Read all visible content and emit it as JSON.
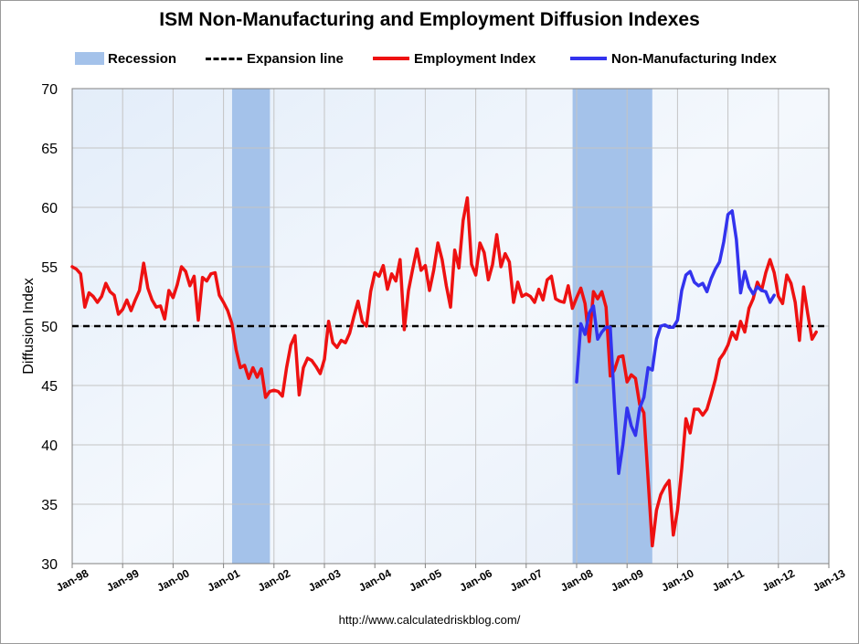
{
  "chart_data": {
    "type": "line",
    "title": "ISM Non-Manufacturing and Employment Diffusion Indexes",
    "xlabel": "",
    "ylabel": "Diffusion Index",
    "ylim": [
      30,
      70
    ],
    "yticks": [
      30,
      35,
      40,
      45,
      50,
      55,
      60,
      65,
      70
    ],
    "xlim": [
      1998.0,
      2013.0
    ],
    "xticks": [
      {
        "label": "Jan-98",
        "t": 1998
      },
      {
        "label": "Jan-99",
        "t": 1999
      },
      {
        "label": "Jan-00",
        "t": 2000
      },
      {
        "label": "Jan-01",
        "t": 2001
      },
      {
        "label": "Jan-02",
        "t": 2002
      },
      {
        "label": "Jan-03",
        "t": 2003
      },
      {
        "label": "Jan-04",
        "t": 2004
      },
      {
        "label": "Jan-05",
        "t": 2005
      },
      {
        "label": "Jan-06",
        "t": 2006
      },
      {
        "label": "Jan-07",
        "t": 2007
      },
      {
        "label": "Jan-08",
        "t": 2008
      },
      {
        "label": "Jan-09",
        "t": 2009
      },
      {
        "label": "Jan-10",
        "t": 2010
      },
      {
        "label": "Jan-11",
        "t": 2011
      },
      {
        "label": "Jan-12",
        "t": 2012
      },
      {
        "label": "Jan-13",
        "t": 2013
      }
    ],
    "grid": true,
    "legend_position": "top",
    "expansion_line": 50,
    "recessions": [
      {
        "start": 2001.17,
        "end": 2001.92
      },
      {
        "start": 2007.92,
        "end": 2009.5
      }
    ],
    "series": [
      {
        "name": "Employment Index",
        "color": "#ee1111",
        "start": 1998.0,
        "step": 0.08333,
        "values": [
          55.0,
          54.8,
          54.4,
          51.6,
          52.8,
          52.5,
          52.0,
          52.5,
          53.6,
          52.9,
          52.6,
          51.0,
          51.4,
          52.2,
          51.3,
          52.2,
          53.0,
          55.3,
          53.2,
          52.2,
          51.6,
          51.7,
          50.6,
          53.0,
          52.4,
          53.5,
          55.0,
          54.6,
          53.4,
          54.2,
          50.5,
          54.1,
          53.8,
          54.4,
          54.5,
          52.6,
          52.0,
          51.3,
          50.2,
          48.0,
          46.5,
          46.7,
          45.6,
          46.5,
          45.7,
          46.4,
          44.0,
          44.5,
          44.6,
          44.5,
          44.1,
          46.5,
          48.4,
          49.2,
          44.2,
          46.5,
          47.3,
          47.1,
          46.6,
          46.0,
          47.2,
          50.4,
          48.6,
          48.2,
          48.8,
          48.6,
          49.4,
          50.8,
          52.1,
          50.4,
          50.0,
          52.9,
          54.5,
          54.2,
          55.1,
          53.1,
          54.4,
          53.8,
          55.6,
          49.7,
          53.0,
          54.8,
          56.5,
          54.7,
          55.1,
          53.0,
          54.7,
          57.0,
          55.6,
          53.4,
          51.6,
          56.4,
          54.9,
          58.9,
          60.8,
          55.2,
          54.3,
          57.0,
          56.2,
          53.9,
          55.2,
          57.7,
          55.0,
          56.1,
          55.4,
          52.0,
          53.7,
          52.5,
          52.7,
          52.5,
          52.0,
          53.1,
          52.2,
          53.9,
          54.2,
          52.3,
          52.1,
          52.0,
          53.4,
          51.5,
          52.4,
          53.2,
          51.9,
          48.7,
          52.9,
          52.3,
          52.9,
          51.6,
          45.8,
          46.3,
          47.4,
          47.5,
          45.3,
          45.9,
          45.6,
          43.4,
          42.7,
          37.1,
          31.5,
          34.5,
          35.8,
          36.5,
          37.0,
          32.4,
          34.5,
          38.0,
          42.2,
          41.0,
          43.0,
          43.0,
          42.5,
          43.0,
          44.2,
          45.5,
          47.2,
          47.7,
          48.4,
          49.5,
          48.9,
          50.4,
          49.5,
          51.5,
          52.3,
          53.7,
          53.0,
          54.5,
          55.6,
          54.5,
          52.5,
          51.9,
          54.3,
          53.6,
          52.0,
          48.8,
          53.3,
          51.0,
          48.9,
          49.5
        ]
      },
      {
        "name": "Non-Manufacturing Index",
        "color": "#3333ee",
        "start": 2008.0,
        "step": 0.08333,
        "values": [
          45.3,
          50.2,
          49.3,
          51.1,
          51.7,
          48.9,
          49.5,
          49.9,
          49.9,
          43.5,
          37.6,
          40.0,
          43.1,
          41.6,
          40.8,
          43.1,
          44.0,
          46.5,
          46.3,
          48.9,
          50.0,
          50.1,
          49.9,
          49.9,
          50.5,
          53.0,
          54.3,
          54.6,
          53.7,
          53.4,
          53.6,
          52.9,
          54.0,
          54.8,
          55.4,
          57.1,
          59.4,
          59.7,
          57.3,
          52.8,
          54.6,
          53.3,
          52.7,
          53.3,
          53.0,
          52.9,
          52.0,
          52.6
        ]
      }
    ]
  },
  "legend": [
    {
      "label": "Recession",
      "kind": "box",
      "color": "#a4c2ea"
    },
    {
      "label": "Expansion line",
      "kind": "dashed",
      "color": "#000000"
    },
    {
      "label": "Employment Index",
      "kind": "line",
      "color": "#ee1111"
    },
    {
      "label": "Non-Manufacturing Index",
      "kind": "line",
      "color": "#3333ee"
    }
  ],
  "footer": {
    "url": "http://www.calculatedriskblog.com/"
  }
}
